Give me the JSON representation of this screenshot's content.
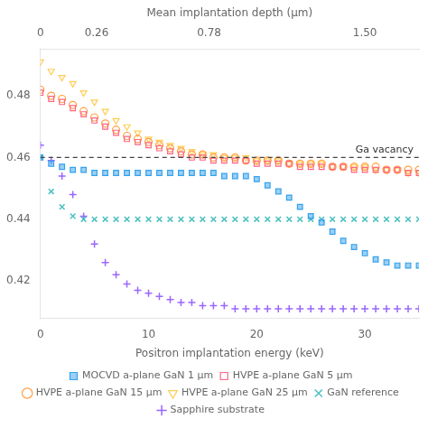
{
  "chart_data": {
    "type": "scatter",
    "xlabel": "Positron implantation energy (keV)",
    "x2label": "Mean implantation depth (μm)",
    "xlim": [
      0,
      35
    ],
    "xticks": [
      0,
      10,
      20,
      30
    ],
    "x2lim": [
      0,
      1.75
    ],
    "x2ticks": [
      0,
      0.26,
      0.78,
      {
        "value": 1.5,
        "label": "1.50"
      }
    ],
    "ylim": [
      0.408,
      0.495
    ],
    "yticks": [
      0.42,
      0.44,
      0.46,
      0.48
    ],
    "grid": false,
    "legend": "bottom",
    "annotations": [
      {
        "type": "hline",
        "y": 0.46,
        "text": "Ga vacancy",
        "line_style": "dashed"
      }
    ],
    "series": [
      {
        "name": "MOCVD a-plane GaN 1 μm",
        "marker": "filled_square",
        "x": [
          0,
          1,
          2,
          3,
          4,
          5,
          6,
          7,
          8,
          9,
          10,
          11,
          12,
          13,
          14,
          15,
          16,
          17,
          18,
          19,
          20,
          21,
          22,
          23,
          24,
          25,
          26,
          27,
          28,
          29,
          30,
          31,
          32,
          33,
          34,
          35
        ],
        "values": [
          0.46,
          0.458,
          0.457,
          0.456,
          0.456,
          0.455,
          0.455,
          0.455,
          0.455,
          0.455,
          0.455,
          0.455,
          0.455,
          0.455,
          0.455,
          0.455,
          0.455,
          0.454,
          0.454,
          0.454,
          0.453,
          0.451,
          0.449,
          0.447,
          0.444,
          0.441,
          0.439,
          0.436,
          0.433,
          0.431,
          0.429,
          0.427,
          0.426,
          0.425,
          0.425,
          0.425
        ]
      },
      {
        "name": "HVPE a-plane GaN 5 μm",
        "marker": "open_square",
        "x": [
          0,
          1,
          2,
          3,
          4,
          5,
          6,
          7,
          8,
          9,
          10,
          11,
          12,
          13,
          14,
          15,
          16,
          17,
          18,
          19,
          20,
          21,
          22,
          23,
          24,
          25,
          26,
          27,
          28,
          29,
          30,
          31,
          32,
          33,
          34,
          35
        ],
        "values": [
          0.481,
          0.479,
          0.478,
          0.476,
          0.474,
          0.472,
          0.47,
          0.468,
          0.466,
          0.465,
          0.464,
          0.463,
          0.462,
          0.461,
          0.46,
          0.46,
          0.459,
          0.459,
          0.459,
          0.459,
          0.458,
          0.458,
          0.458,
          0.458,
          0.457,
          0.457,
          0.457,
          0.457,
          0.457,
          0.456,
          0.456,
          0.456,
          0.456,
          0.456,
          0.455,
          0.455
        ]
      },
      {
        "name": "HVPE a-plane GaN 15 μm",
        "marker": "open_circle",
        "x": [
          0,
          1,
          2,
          3,
          4,
          5,
          6,
          7,
          8,
          9,
          10,
          11,
          12,
          13,
          14,
          15,
          16,
          17,
          18,
          19,
          20,
          21,
          22,
          23,
          24,
          25,
          26,
          27,
          28,
          29,
          30,
          31,
          32,
          33,
          34,
          35
        ],
        "values": [
          0.482,
          0.48,
          0.479,
          0.477,
          0.475,
          0.473,
          0.471,
          0.469,
          0.467,
          0.466,
          0.465,
          0.464,
          0.463,
          0.462,
          0.461,
          0.461,
          0.46,
          0.46,
          0.46,
          0.459,
          0.459,
          0.459,
          0.459,
          0.458,
          0.458,
          0.458,
          0.458,
          0.457,
          0.457,
          0.457,
          0.457,
          0.457,
          0.456,
          0.456,
          0.456,
          0.456
        ]
      },
      {
        "name": "HVPE a-plane GaN 25 μm",
        "marker": "open_triangle_down",
        "x": [
          0,
          1,
          2,
          3,
          4,
          5,
          6,
          7,
          8,
          9,
          10,
          11,
          12,
          13,
          14,
          15,
          16,
          17,
          18,
          19,
          20,
          21,
          22,
          23,
          24,
          25,
          26,
          27,
          28,
          29,
          30,
          31,
          32,
          33,
          34,
          35
        ],
        "values": [
          0.491,
          0.488,
          0.486,
          0.484,
          0.481,
          0.478,
          0.475,
          0.472,
          0.47,
          0.468,
          0.466,
          0.465,
          0.464,
          0.463,
          0.462,
          0.461,
          0.461,
          0.46,
          0.46,
          0.46,
          0.459,
          0.459,
          0.459,
          0.458,
          0.458,
          0.458,
          0.458,
          0.457,
          0.457,
          0.457,
          0.457,
          0.456,
          0.456,
          0.456,
          0.455,
          0.455
        ]
      },
      {
        "name": "GaN reference",
        "marker": "x",
        "x": [
          0,
          1,
          2,
          3,
          4,
          5,
          6,
          7,
          8,
          9,
          10,
          11,
          12,
          13,
          14,
          15,
          16,
          17,
          18,
          19,
          20,
          21,
          22,
          23,
          24,
          25,
          26,
          27,
          28,
          29,
          30,
          31,
          32,
          33,
          34,
          35
        ],
        "values": [
          0.46,
          0.449,
          0.444,
          0.441,
          0.44,
          0.44,
          0.44,
          0.44,
          0.44,
          0.44,
          0.44,
          0.44,
          0.44,
          0.44,
          0.44,
          0.44,
          0.44,
          0.44,
          0.44,
          0.44,
          0.44,
          0.44,
          0.44,
          0.44,
          0.44,
          0.44,
          0.44,
          0.44,
          0.44,
          0.44,
          0.44,
          0.44,
          0.44,
          0.44,
          0.44,
          0.44
        ]
      },
      {
        "name": "Sapphire substrate",
        "marker": "plus",
        "x": [
          0,
          1,
          2,
          3,
          4,
          5,
          6,
          7,
          8,
          9,
          10,
          11,
          12,
          13,
          14,
          15,
          16,
          17,
          18,
          19,
          20,
          21,
          22,
          23,
          24,
          25,
          26,
          27,
          28,
          29,
          30,
          31,
          32,
          33,
          34,
          35
        ],
        "values": [
          0.464,
          0.459,
          0.454,
          0.448,
          0.441,
          0.432,
          0.426,
          0.422,
          0.419,
          0.417,
          0.416,
          0.415,
          0.414,
          0.413,
          0.413,
          0.412,
          0.412,
          0.412,
          0.411,
          0.411,
          0.411,
          0.411,
          0.411,
          0.411,
          0.411,
          0.411,
          0.411,
          0.411,
          0.411,
          0.411,
          0.411,
          0.411,
          0.411,
          0.411,
          0.411,
          0.411
        ]
      }
    ]
  }
}
